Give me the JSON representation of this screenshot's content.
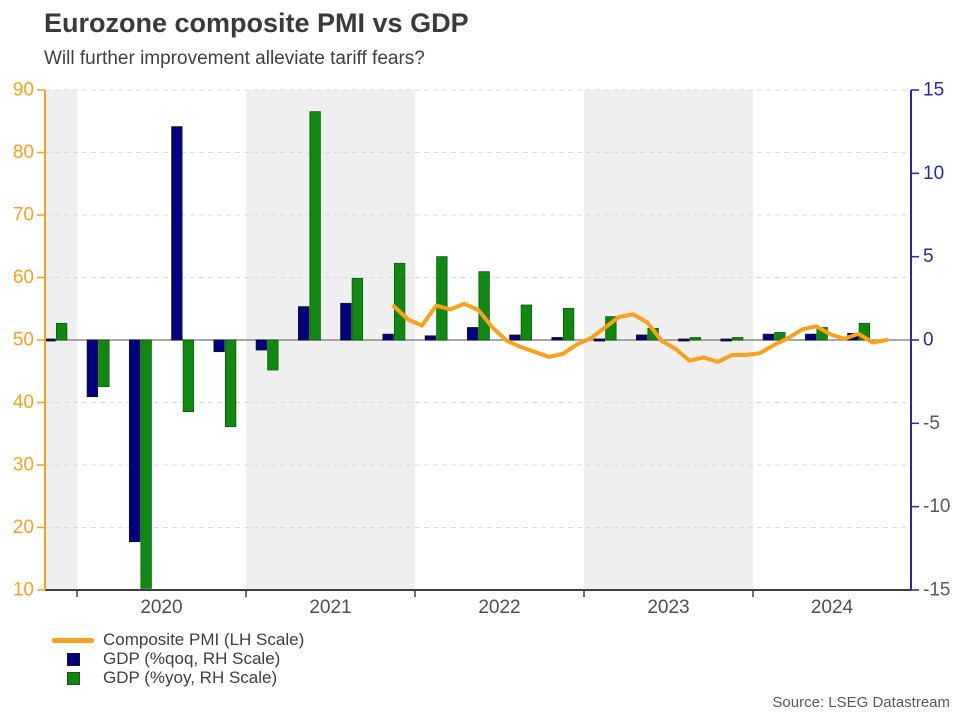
{
  "header": {
    "title": "Eurozone composite PMI vs GDP",
    "subtitle": "Will further improvement alleviate tariff fears?"
  },
  "source": "Source: LSEG Datastream",
  "legend": [
    {
      "label": "Composite PMI (LH Scale)",
      "swatch": "line",
      "color": "#F9A11B",
      "edge": "#F9A11B"
    },
    {
      "label": "GDP (%qoq, RH Scale)",
      "swatch": "square",
      "color": "#000080",
      "edge": "#16161D"
    },
    {
      "label": "GDP (%yoy, RH Scale)",
      "swatch": "square",
      "color": "#118811",
      "edge": "#0A5D0A"
    }
  ],
  "styles": {
    "plot_band": "#EFEFEF",
    "grid_line": "#DBDBDB",
    "zero_line": "#8C8C8C",
    "bottom_axis": "#3F3F3F",
    "year_label_color": "#4F4F4F",
    "title_color": "#3A3A3A",
    "text_color": "#3F3F3F",
    "source_color": "#595959",
    "background": "#FFFFFF"
  },
  "chart_data": {
    "type": "mixed",
    "title": "Eurozone composite PMI vs GDP",
    "subtitle": "Will further improvement alleviate tariff fears?",
    "grid": "horizontal-dashed",
    "legend_position": "bottom-left",
    "left_axis": {
      "label": "Composite PMI (LH Scale)",
      "min": 10,
      "max": 90,
      "ticks": [
        90,
        80,
        70,
        60,
        50,
        40,
        30,
        20,
        10
      ],
      "color": "#F9A11B"
    },
    "right_axis": {
      "label": "GDP (RH Scale)",
      "min": -15,
      "max": 15,
      "ticks": [
        15,
        10,
        5,
        0,
        -5,
        -10,
        -15
      ],
      "color": "#2929A3",
      "negative_label_color": "#595959"
    },
    "x_axis": {
      "year_labels": [
        "2020",
        "2021",
        "2022",
        "2023",
        "2024"
      ],
      "start": "2019-11",
      "end": "2024-12",
      "shaded_year_bands": [
        "2019",
        "2021",
        "2023"
      ]
    },
    "zero_baseline_left": 50,
    "quarters": [
      "2019Q4",
      "2020Q1",
      "2020Q2",
      "2020Q3",
      "2020Q4",
      "2021Q1",
      "2021Q2",
      "2021Q3",
      "2021Q4",
      "2022Q1",
      "2022Q2",
      "2022Q3",
      "2022Q4",
      "2023Q1",
      "2023Q2",
      "2023Q3",
      "2023Q4",
      "2024Q1",
      "2024Q2",
      "2024Q3"
    ],
    "series": [
      {
        "name": "Composite PMI (LH Scale)",
        "type": "line",
        "axis": "left",
        "color": "#F9A11B",
        "line_width": 4,
        "months": [
          "2021-11",
          "2021-12",
          "2022-01",
          "2022-02",
          "2022-03",
          "2022-04",
          "2022-05",
          "2022-06",
          "2022-07",
          "2022-08",
          "2022-09",
          "2022-10",
          "2022-11",
          "2022-12",
          "2023-01",
          "2023-02",
          "2023-03",
          "2023-04",
          "2023-05",
          "2023-06",
          "2023-07",
          "2023-08",
          "2023-09",
          "2023-10",
          "2023-11",
          "2023-12",
          "2024-01",
          "2024-02",
          "2024-03",
          "2024-04",
          "2024-05",
          "2024-06",
          "2024-07",
          "2024-08",
          "2024-09",
          "2024-10"
        ],
        "values": [
          55.4,
          53.3,
          52.3,
          55.5,
          54.9,
          55.8,
          54.8,
          52.0,
          49.9,
          48.9,
          48.1,
          47.3,
          47.8,
          49.3,
          50.3,
          52.0,
          53.7,
          54.1,
          52.8,
          49.9,
          48.6,
          46.7,
          47.2,
          46.5,
          47.6,
          47.6,
          47.9,
          49.2,
          50.3,
          51.7,
          52.2,
          50.9,
          50.2,
          51.0,
          49.6,
          50.0
        ]
      },
      {
        "name": "GDP (%qoq, RH Scale)",
        "type": "bar",
        "axis": "right",
        "color": "#000080",
        "edge": "#16161D",
        "values": [
          0.1,
          -3.4,
          -12.1,
          12.8,
          -0.7,
          -0.6,
          2.0,
          2.2,
          0.35,
          0.25,
          0.75,
          0.3,
          0.15,
          0.1,
          0.3,
          0.0,
          0.0,
          0.35,
          0.35,
          0.4
        ]
      },
      {
        "name": "GDP (%yoy, RH Scale)",
        "type": "bar",
        "axis": "right",
        "color": "#118811",
        "edge": "#0A5D0A",
        "values": [
          1.0,
          -2.8,
          -14.9,
          -4.3,
          -5.2,
          -1.8,
          13.7,
          3.7,
          4.6,
          5.0,
          4.1,
          2.1,
          1.9,
          1.4,
          0.7,
          0.15,
          0.15,
          0.45,
          0.75,
          1.0
        ]
      }
    ]
  }
}
